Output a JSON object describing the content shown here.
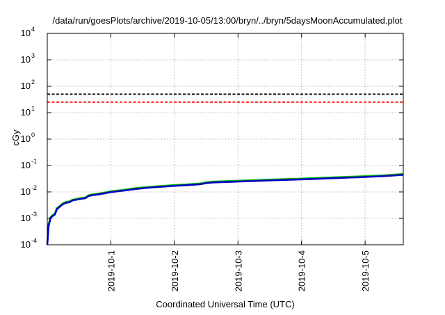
{
  "chart_data": {
    "type": "line",
    "title": "/data/run/goesPlots/archive/2019-10-05/13:00/bryn/../bryn/5daysMoonAccumulated.plot",
    "xlabel": "Coordinated Universal Time (UTC)",
    "ylabel": "cGy",
    "yscale": "log",
    "ylim": [
      0.0001,
      10000
    ],
    "xlim": [
      0,
      5.6
    ],
    "grid": true,
    "x_ticks": [
      {
        "x": 1,
        "label": "2019-10-1"
      },
      {
        "x": 2,
        "label": "2019-10-2"
      },
      {
        "x": 3,
        "label": "2019-10-3"
      },
      {
        "x": 4,
        "label": "2019-10-4"
      },
      {
        "x": 5,
        "label": "2019-10-5"
      }
    ],
    "y_ticks": [
      {
        "exp": -4
      },
      {
        "exp": -3
      },
      {
        "exp": -2
      },
      {
        "exp": -1
      },
      {
        "exp": 0
      },
      {
        "exp": 1
      },
      {
        "exp": 2
      },
      {
        "exp": 3
      },
      {
        "exp": 4
      }
    ],
    "series": [
      {
        "color": "#00c000",
        "style": "solid",
        "x": [
          0.0,
          0.02,
          0.05,
          0.08,
          0.12,
          0.15,
          0.2,
          0.25,
          0.3,
          0.35,
          0.4,
          0.5,
          0.6,
          0.65,
          0.7,
          0.8,
          0.9,
          1.0,
          1.2,
          1.4,
          1.6,
          1.8,
          2.0,
          2.2,
          2.4,
          2.5,
          2.6,
          3.0,
          3.5,
          4.0,
          4.5,
          5.0,
          5.3,
          5.6
        ],
        "y": [
          0.00012,
          0.0006,
          0.0011,
          0.0013,
          0.0015,
          0.0024,
          0.003,
          0.0038,
          0.0042,
          0.0044,
          0.0051,
          0.0057,
          0.0062,
          0.0075,
          0.008,
          0.0085,
          0.0095,
          0.0105,
          0.012,
          0.014,
          0.0155,
          0.0168,
          0.0182,
          0.0192,
          0.0208,
          0.023,
          0.0245,
          0.0265,
          0.0292,
          0.032,
          0.0355,
          0.0395,
          0.0425,
          0.048
        ]
      },
      {
        "color": "#0000c0",
        "style": "solid",
        "x": [
          0.0,
          0.02,
          0.05,
          0.08,
          0.12,
          0.15,
          0.2,
          0.25,
          0.3,
          0.35,
          0.4,
          0.5,
          0.6,
          0.65,
          0.7,
          0.8,
          0.9,
          1.0,
          1.2,
          1.4,
          1.6,
          1.8,
          2.0,
          2.2,
          2.4,
          2.5,
          2.6,
          3.0,
          3.5,
          4.0,
          4.5,
          5.0,
          5.3,
          5.6
        ],
        "y": [
          0.0001,
          0.0005,
          0.001,
          0.0012,
          0.0014,
          0.0022,
          0.0028,
          0.0035,
          0.0039,
          0.0041,
          0.0048,
          0.0053,
          0.0058,
          0.007,
          0.0075,
          0.008,
          0.0089,
          0.0098,
          0.0112,
          0.013,
          0.0145,
          0.0157,
          0.017,
          0.018,
          0.0195,
          0.0215,
          0.0228,
          0.0247,
          0.0272,
          0.0298,
          0.033,
          0.0368,
          0.0395,
          0.0445
        ]
      }
    ],
    "reference_lines": [
      {
        "y": 50,
        "color": "#000000",
        "style": "dashed"
      },
      {
        "y": 25,
        "color": "#ff0000",
        "style": "dashed"
      }
    ]
  }
}
